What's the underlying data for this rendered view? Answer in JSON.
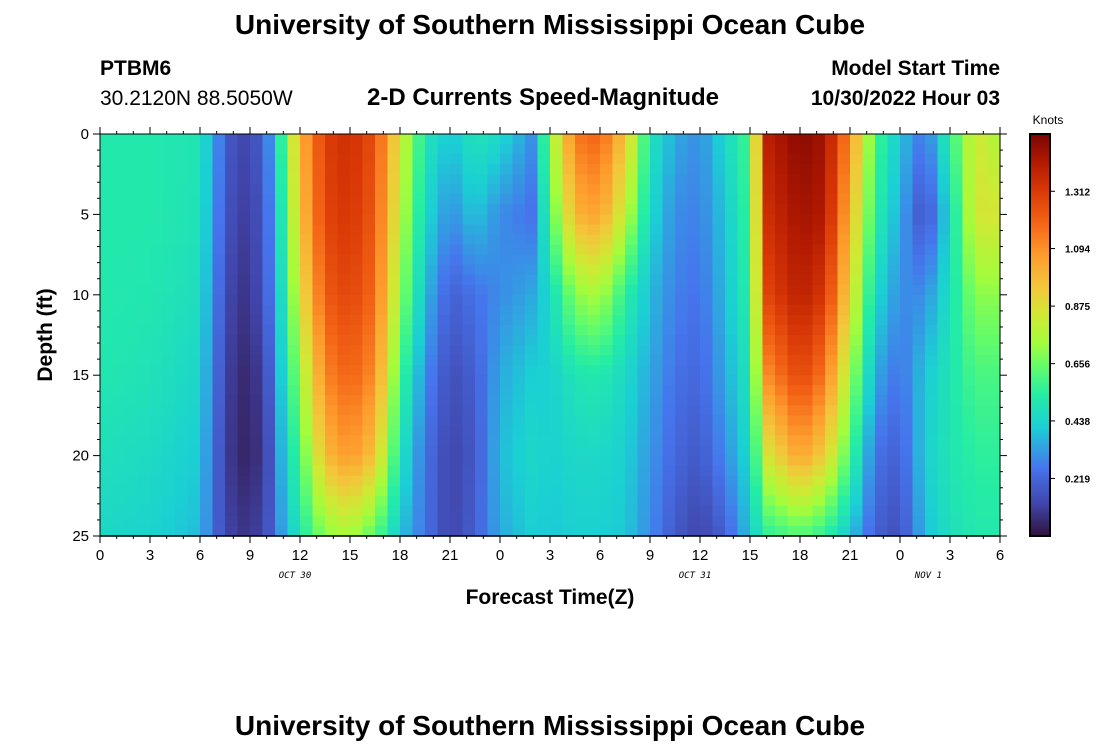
{
  "header": {
    "title": "University of Southern Mississippi Ocean Cube",
    "station_id": "PTBM6",
    "coordinates": "30.2120N  88.5050W",
    "model_start_label": "Model Start Time",
    "model_start_value": "10/30/2022 Hour 03"
  },
  "footer": {
    "title": "University of Southern Mississippi Ocean Cube"
  },
  "chart_data": {
    "type": "heatmap",
    "title": "2-D Currents Speed-Magnitude",
    "xlabel": "Forecast Time(Z)",
    "ylabel": "Depth (ft)",
    "x_ticks": [
      "0",
      "3",
      "6",
      "9",
      "12",
      "15",
      "18",
      "21",
      "0",
      "3",
      "6",
      "9",
      "12",
      "15",
      "18",
      "21",
      "0",
      "3",
      "6"
    ],
    "x_range_hours": [
      0,
      54
    ],
    "date_labels": [
      {
        "label": "OCT 30",
        "hour": 12
      },
      {
        "label": "OCT 31",
        "hour": 36
      },
      {
        "label": "NOV 1",
        "hour": 50
      }
    ],
    "y_ticks": [
      "0",
      "5",
      "10",
      "15",
      "20",
      "25"
    ],
    "ylim": [
      25,
      0
    ],
    "y_inverted": true,
    "colorbar": {
      "unit": "Knots",
      "range": [
        0,
        1.53
      ],
      "ticks": [
        "0.219",
        "0.438",
        "0.656",
        "0.875",
        "1.094",
        "1.312"
      ],
      "tick_values": [
        0.219,
        0.438,
        0.656,
        0.875,
        1.094,
        1.312
      ],
      "colormap": "turbo"
    },
    "time_hours": [
      0,
      3,
      6,
      7,
      8,
      9,
      10,
      11,
      12,
      13.5,
      15,
      16.5,
      18,
      19.5,
      21,
      22.5,
      24,
      26,
      27,
      28.5,
      30,
      31.5,
      33,
      34.5,
      36,
      37.5,
      39,
      40,
      42,
      43.5,
      45,
      46.5,
      48,
      49.5,
      51,
      52.5,
      54
    ],
    "depth_ft": [
      0,
      5,
      10,
      15,
      20,
      25
    ],
    "speed_profiles": [
      [
        0.52,
        0.52,
        0.52,
        0.51,
        0.48,
        0.45
      ],
      [
        0.52,
        0.52,
        0.51,
        0.49,
        0.46,
        0.43
      ],
      [
        0.5,
        0.49,
        0.47,
        0.44,
        0.41,
        0.38
      ],
      [
        0.3,
        0.28,
        0.25,
        0.22,
        0.2,
        0.2
      ],
      [
        0.15,
        0.13,
        0.1,
        0.08,
        0.07,
        0.1
      ],
      [
        0.12,
        0.1,
        0.08,
        0.05,
        0.04,
        0.08
      ],
      [
        0.25,
        0.22,
        0.2,
        0.15,
        0.12,
        0.15
      ],
      [
        0.6,
        0.55,
        0.5,
        0.45,
        0.4,
        0.35
      ],
      [
        1.0,
        0.95,
        0.85,
        0.72,
        0.6,
        0.5
      ],
      [
        1.3,
        1.28,
        1.22,
        1.12,
        0.98,
        0.7
      ],
      [
        1.35,
        1.33,
        1.28,
        1.2,
        1.08,
        0.75
      ],
      [
        1.25,
        1.22,
        1.18,
        1.1,
        0.95,
        0.62
      ],
      [
        0.85,
        0.8,
        0.72,
        0.6,
        0.5,
        0.4
      ],
      [
        0.5,
        0.45,
        0.38,
        0.3,
        0.25,
        0.25
      ],
      [
        0.4,
        0.3,
        0.2,
        0.15,
        0.12,
        0.12
      ],
      [
        0.5,
        0.4,
        0.25,
        0.2,
        0.18,
        0.2
      ],
      [
        0.45,
        0.3,
        0.3,
        0.35,
        0.38,
        0.35
      ],
      [
        0.3,
        0.25,
        0.35,
        0.42,
        0.45,
        0.42
      ],
      [
        0.7,
        0.6,
        0.45,
        0.42,
        0.42,
        0.4
      ],
      [
        1.15,
        1.0,
        0.7,
        0.5,
        0.45,
        0.42
      ],
      [
        1.2,
        1.05,
        0.75,
        0.52,
        0.45,
        0.42
      ],
      [
        0.95,
        0.8,
        0.55,
        0.45,
        0.42,
        0.4
      ],
      [
        0.5,
        0.45,
        0.38,
        0.35,
        0.32,
        0.3
      ],
      [
        0.35,
        0.3,
        0.28,
        0.25,
        0.22,
        0.18
      ],
      [
        0.3,
        0.28,
        0.25,
        0.22,
        0.18,
        0.12
      ],
      [
        0.45,
        0.4,
        0.38,
        0.35,
        0.3,
        0.2
      ],
      [
        0.6,
        0.58,
        0.55,
        0.5,
        0.45,
        0.4
      ],
      [
        1.4,
        1.35,
        1.28,
        1.1,
        0.85,
        0.55
      ],
      [
        1.5,
        1.45,
        1.4,
        1.28,
        1.05,
        0.62
      ],
      [
        1.45,
        1.42,
        1.32,
        1.15,
        0.92,
        0.55
      ],
      [
        1.1,
        1.0,
        0.9,
        0.75,
        0.6,
        0.4
      ],
      [
        0.6,
        0.55,
        0.45,
        0.35,
        0.25,
        0.2
      ],
      [
        0.4,
        0.35,
        0.3,
        0.25,
        0.2,
        0.15
      ],
      [
        0.25,
        0.15,
        0.3,
        0.4,
        0.42,
        0.38
      ],
      [
        0.55,
        0.45,
        0.48,
        0.5,
        0.5,
        0.48
      ],
      [
        0.85,
        0.85,
        0.7,
        0.6,
        0.55,
        0.52
      ],
      [
        0.75,
        0.85,
        0.7,
        0.6,
        0.55,
        0.52
      ]
    ]
  }
}
